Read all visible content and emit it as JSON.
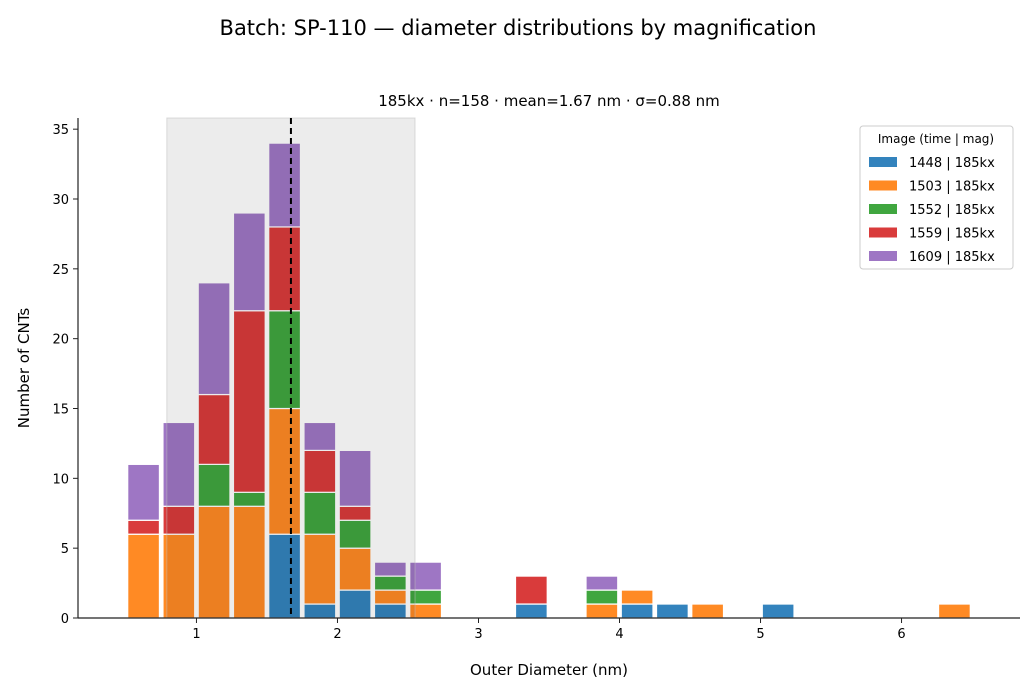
{
  "chart_data": {
    "type": "bar",
    "stacked": true,
    "title": "Batch: SP-110  —  diameter distributions by magnification",
    "subtitle": "185kx  ·  n=158  ·  mean=1.67 nm  ·  σ=0.88 nm",
    "xlabel": "Outer Diameter (nm)",
    "ylabel": "Number of CNTs",
    "xlim": [
      0.16,
      6.84
    ],
    "ylim": [
      0,
      35.8
    ],
    "xticks": [
      1,
      2,
      3,
      4,
      5,
      6
    ],
    "yticks": [
      0,
      5,
      10,
      15,
      20,
      25,
      30,
      35
    ],
    "bin_width": 0.25,
    "bin_starts": [
      0.5,
      0.75,
      1.0,
      1.25,
      1.5,
      1.75,
      2.0,
      2.25,
      2.5,
      3.25,
      3.75,
      4.0,
      4.25,
      4.5,
      5.0,
      6.25
    ],
    "series": [
      {
        "name": "1448 | 185kx",
        "color": "#3383bd",
        "values": [
          0,
          0,
          0,
          0,
          6,
          1,
          2,
          1,
          0,
          1,
          0,
          1,
          1,
          0,
          1,
          0
        ]
      },
      {
        "name": "1503 | 185kx",
        "color": "#ff8a24",
        "values": [
          6,
          6,
          8,
          8,
          9,
          5,
          3,
          1,
          1,
          0,
          1,
          1,
          0,
          1,
          0,
          1
        ]
      },
      {
        "name": "1552 | 185kx",
        "color": "#40a63f",
        "values": [
          0,
          0,
          3,
          1,
          7,
          3,
          2,
          1,
          1,
          0,
          1,
          0,
          0,
          0,
          0,
          0
        ]
      },
      {
        "name": "1559 | 185kx",
        "color": "#d93b3b",
        "values": [
          1,
          2,
          5,
          13,
          6,
          3,
          1,
          0,
          0,
          2,
          0,
          0,
          0,
          0,
          0,
          0
        ]
      },
      {
        "name": "1609 | 185kx",
        "color": "#9e76c4",
        "values": [
          4,
          6,
          8,
          7,
          6,
          2,
          4,
          1,
          2,
          0,
          1,
          0,
          0,
          0,
          0,
          0
        ]
      }
    ],
    "mean_line": 1.67,
    "sigma_band": [
      0.79,
      2.55
    ],
    "legend": {
      "title": "Image (time | mag)",
      "placement": "top-right"
    },
    "grid": false
  }
}
